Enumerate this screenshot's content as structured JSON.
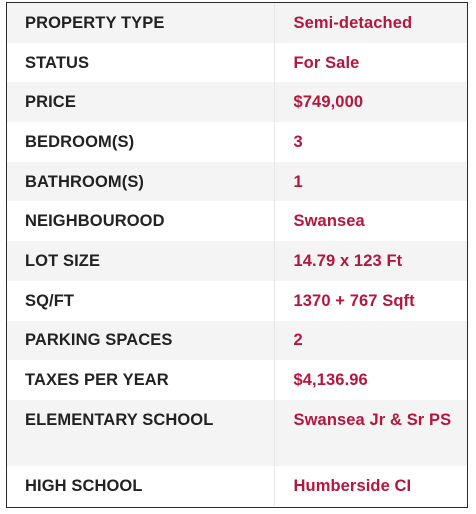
{
  "rows": [
    {
      "label": "PROPERTY TYPE",
      "value": "Semi-detached"
    },
    {
      "label": "STATUS",
      "value": "For Sale"
    },
    {
      "label": "PRICE",
      "value": "$749,000"
    },
    {
      "label": "BEDROOM(S)",
      "value": "3"
    },
    {
      "label": "BATHROOM(S)",
      "value": "1"
    },
    {
      "label": "NEIGHBOUROOD",
      "value": "Swansea"
    },
    {
      "label": "LOT SIZE",
      "value": "14.79 x 123 Ft"
    },
    {
      "label": "SQ/FT",
      "value": "1370 + 767 Sqft"
    },
    {
      "label": "PARKING SPACES",
      "value": "2"
    },
    {
      "label": "TAXES PER YEAR",
      "value": "$4,136.96"
    },
    {
      "label": "ELEMENTARY SCHOOL",
      "value": "Swansea Jr & Sr PS"
    },
    {
      "label": "HIGH SCHOOL",
      "value": "Humberside CI"
    }
  ],
  "colors": {
    "label": "#222222",
    "value": "#b5163e",
    "row_alt": "#f4f4f4",
    "border": "#2a2a2a"
  }
}
